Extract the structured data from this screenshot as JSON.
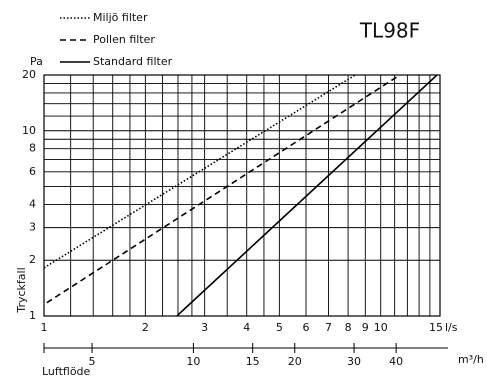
{
  "chart_data": {
    "type": "line",
    "title": "TL98F",
    "x_label": "Luftflöde",
    "y_label": "Tryckfall",
    "y_unit": "Pa",
    "x_unit": "l/s",
    "x2_unit": "m³/h",
    "log_x": true,
    "log_y": true,
    "grid": true,
    "xlim": [
      1,
      15
    ],
    "ylim": [
      1,
      20
    ],
    "xticks": [
      1,
      2,
      3,
      4,
      5,
      6,
      7,
      8,
      9,
      10,
      15
    ],
    "xgrid": [
      1,
      1.2,
      1.4,
      1.6,
      1.8,
      2,
      2.25,
      2.5,
      2.75,
      3,
      3.5,
      4,
      4.5,
      5,
      6,
      7,
      8,
      9,
      10,
      11,
      12,
      13,
      14,
      15
    ],
    "yticks": [
      1,
      2,
      3,
      4,
      6,
      8,
      10,
      20
    ],
    "ygrid": [
      1,
      2,
      3,
      4,
      5,
      6,
      7,
      8,
      9,
      10,
      12,
      14,
      16,
      18,
      20
    ],
    "x2lim": [
      3.6,
      54
    ],
    "x2ticks": [
      5,
      10,
      15,
      20,
      30,
      40
    ],
    "series": [
      {
        "name": "Miljö filter",
        "color": "#000",
        "dash": "1.5 2",
        "x": [
          1,
          8.4
        ],
        "values": [
          1.82,
          20
        ]
      },
      {
        "name": "Pollen filter",
        "color": "#000",
        "dash": "6 4",
        "x": [
          1.02,
          11.4
        ],
        "values": [
          1.18,
          20
        ]
      },
      {
        "name": "Standard filter",
        "color": "#000",
        "dash": "none",
        "x": [
          2.48,
          14.7
        ],
        "values": [
          1,
          20
        ]
      }
    ]
  }
}
